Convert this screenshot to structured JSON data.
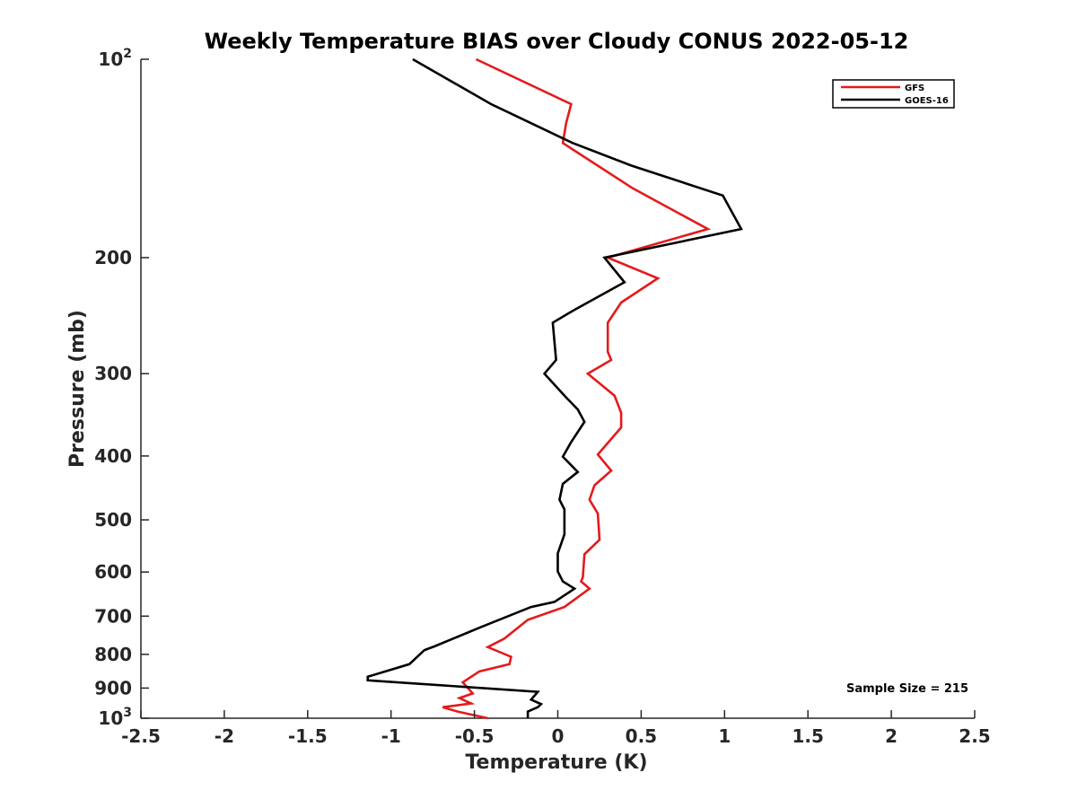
{
  "chart_data": {
    "type": "line",
    "title": "Weekly Temperature BIAS over Cloudy CONUS 2022-05-12",
    "xlabel": "Temperature (K)",
    "ylabel": "Pressure (mb)",
    "xlim": [
      -2.5,
      2.5
    ],
    "ylim": [
      100,
      1000
    ],
    "y_scale": "log",
    "y_reversed": true,
    "grid": false,
    "legend_position": "top-right",
    "x_ticks": [
      -2.5,
      -2,
      -1.5,
      -1,
      -0.5,
      0,
      0.5,
      1,
      1.5,
      2,
      2.5
    ],
    "x_tick_labels": [
      "-2.5",
      "-2",
      "-1.5",
      "-1",
      "-0.5",
      "0",
      "0.5",
      "1",
      "1.5",
      "2",
      "2.5"
    ],
    "y_ticks": [
      {
        "value": 100,
        "base": "10",
        "exp": "2"
      },
      {
        "value": 200,
        "label": "200"
      },
      {
        "value": 300,
        "label": "300"
      },
      {
        "value": 400,
        "label": "400"
      },
      {
        "value": 500,
        "label": "500"
      },
      {
        "value": 600,
        "label": "600"
      },
      {
        "value": 700,
        "label": "700"
      },
      {
        "value": 800,
        "label": "800"
      },
      {
        "value": 900,
        "label": "900"
      },
      {
        "value": 1000,
        "base": "10",
        "exp": "3"
      }
    ],
    "annotation": "Sample Size = 215",
    "series": [
      {
        "name": "GFS",
        "color": "#e41a1c",
        "points": [
          [
            -0.49,
            100
          ],
          [
            0.08,
            117
          ],
          [
            0.05,
            125
          ],
          [
            0.03,
            134
          ],
          [
            0.45,
            157
          ],
          [
            0.9,
            181
          ],
          [
            0.3,
            200
          ],
          [
            0.6,
            215
          ],
          [
            0.38,
            234
          ],
          [
            0.3,
            251
          ],
          [
            0.3,
            278
          ],
          [
            0.32,
            286
          ],
          [
            0.18,
            300
          ],
          [
            0.34,
            324
          ],
          [
            0.38,
            344
          ],
          [
            0.38,
            362
          ],
          [
            0.24,
            398
          ],
          [
            0.32,
            421
          ],
          [
            0.22,
            443
          ],
          [
            0.19,
            466
          ],
          [
            0.24,
            489
          ],
          [
            0.25,
            536
          ],
          [
            0.16,
            564
          ],
          [
            0.15,
            611
          ],
          [
            0.14,
            620
          ],
          [
            0.19,
            636
          ],
          [
            0.04,
            678
          ],
          [
            -0.18,
            709
          ],
          [
            -0.32,
            757
          ],
          [
            -0.42,
            780
          ],
          [
            -0.28,
            807
          ],
          [
            -0.29,
            828
          ],
          [
            -0.47,
            849
          ],
          [
            -0.57,
            882
          ],
          [
            -0.51,
            917
          ],
          [
            -0.59,
            932
          ],
          [
            -0.52,
            950
          ],
          [
            -0.69,
            962
          ],
          [
            -0.6,
            977
          ],
          [
            -0.42,
            1000
          ]
        ]
      },
      {
        "name": "GOES-16",
        "color": "#000000",
        "points": [
          [
            -0.87,
            100
          ],
          [
            -0.4,
            117
          ],
          [
            0.09,
            134
          ],
          [
            0.44,
            145
          ],
          [
            0.99,
            161
          ],
          [
            1.1,
            181
          ],
          [
            0.28,
            200
          ],
          [
            0.4,
            218
          ],
          [
            0.1,
            240
          ],
          [
            -0.03,
            251
          ],
          [
            -0.01,
            286
          ],
          [
            -0.08,
            300
          ],
          [
            0.05,
            326
          ],
          [
            0.12,
            340
          ],
          [
            0.16,
            355
          ],
          [
            0.08,
            381
          ],
          [
            0.03,
            401
          ],
          [
            0.12,
            423
          ],
          [
            0.03,
            441
          ],
          [
            0.01,
            466
          ],
          [
            0.04,
            482
          ],
          [
            0.04,
            526
          ],
          [
            0.0,
            562
          ],
          [
            0.0,
            599
          ],
          [
            0.03,
            620
          ],
          [
            0.1,
            636
          ],
          [
            -0.02,
            666
          ],
          [
            -0.16,
            678
          ],
          [
            -0.46,
            727
          ],
          [
            -0.74,
            778
          ],
          [
            -0.8,
            788
          ],
          [
            -0.89,
            828
          ],
          [
            -1.14,
            865
          ],
          [
            -1.14,
            876
          ],
          [
            -0.12,
            912
          ],
          [
            -0.16,
            937
          ],
          [
            -0.1,
            952
          ],
          [
            -0.12,
            962
          ],
          [
            -0.18,
            977
          ],
          [
            -0.18,
            1000
          ]
        ]
      }
    ]
  }
}
